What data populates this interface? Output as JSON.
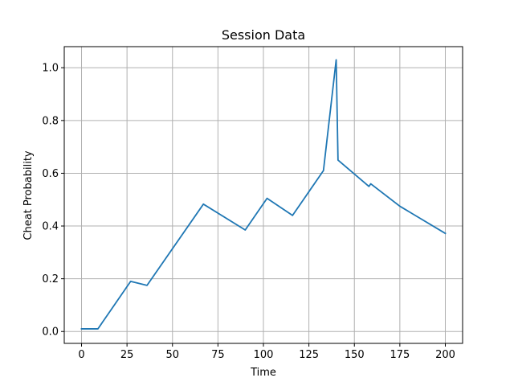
{
  "chart_data": {
    "type": "line",
    "title": "Session Data",
    "xlabel": "Time",
    "ylabel": "Cheat Probability",
    "xlim": [
      -9.5,
      209.5
    ],
    "ylim": [
      -0.045,
      1.08
    ],
    "xticks": [
      0,
      25,
      50,
      75,
      100,
      125,
      150,
      175,
      200
    ],
    "yticks": [
      0.0,
      0.2,
      0.4,
      0.6,
      0.8,
      1.0
    ],
    "xtick_labels": [
      "0",
      "25",
      "50",
      "75",
      "100",
      "125",
      "150",
      "175",
      "200"
    ],
    "ytick_labels": [
      "0.0",
      "0.2",
      "0.4",
      "0.6",
      "0.8",
      "1.0"
    ],
    "grid": true,
    "series": [
      {
        "color": "#1f77b4",
        "points": [
          [
            0,
            0.01
          ],
          [
            9,
            0.01
          ],
          [
            27,
            0.19
          ],
          [
            36,
            0.175
          ],
          [
            67,
            0.483
          ],
          [
            90,
            0.385
          ],
          [
            102,
            0.505
          ],
          [
            116,
            0.44
          ],
          [
            133,
            0.61
          ],
          [
            140,
            1.03
          ],
          [
            141,
            0.65
          ],
          [
            158,
            0.55
          ],
          [
            159,
            0.56
          ],
          [
            175,
            0.475
          ],
          [
            200,
            0.372
          ]
        ]
      }
    ]
  }
}
